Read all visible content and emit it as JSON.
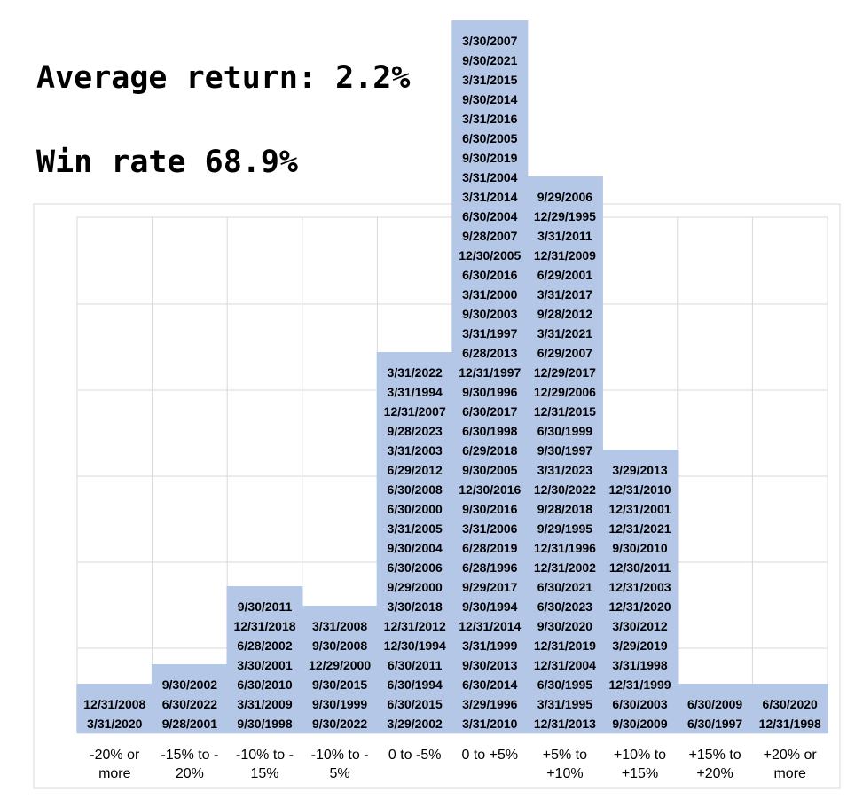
{
  "stats": {
    "average_return": "Average return: 2.2%",
    "win_rate": "Win rate 68.9%"
  },
  "colors": {
    "box_fill": "#b4c7e7",
    "grid": "#d9d9d9",
    "frame": "#d9d9d9",
    "text": "#000000"
  },
  "chart_data": {
    "type": "bar",
    "title": "",
    "xlabel": "",
    "ylabel": "",
    "categories": [
      [
        "-20% or",
        "more"
      ],
      [
        "-15% to -",
        "20%"
      ],
      [
        "-10% to -",
        "15%"
      ],
      [
        "-10% to -",
        "5%"
      ],
      [
        "0 to -5%"
      ],
      [
        "0 to +5%"
      ],
      [
        "+5% to",
        "+10%"
      ],
      [
        "+10% to",
        "+15%"
      ],
      [
        "+15% to",
        "+20%"
      ],
      [
        "+20% or",
        "more"
      ]
    ],
    "values": [
      2,
      3,
      7,
      6,
      19,
      36,
      28,
      14,
      2,
      2
    ],
    "grid": true,
    "legend": "none",
    "bins": [
      [
        "3/31/2020",
        "12/31/2008"
      ],
      [
        "9/28/2001",
        "6/30/2022",
        "9/30/2002"
      ],
      [
        "9/30/1998",
        "3/31/2009",
        "6/30/2010",
        "3/30/2001",
        "6/28/2002",
        "12/31/2018",
        "9/30/2011"
      ],
      [
        "9/30/2022",
        "9/30/1999",
        "9/30/2015",
        "12/29/2000",
        "9/30/2008",
        "3/31/2008"
      ],
      [
        "3/29/2002",
        "6/30/2015",
        "6/30/1994",
        "6/30/2011",
        "12/30/1994",
        "12/31/2012",
        "3/30/2018",
        "9/29/2000",
        "6/30/2006",
        "9/30/2004",
        "3/31/2005",
        "6/30/2000",
        "6/30/2008",
        "6/29/2012",
        "3/31/2003",
        "9/28/2023",
        "12/31/2007",
        "3/31/1994",
        "3/31/2022"
      ],
      [
        "3/31/2010",
        "3/29/1996",
        "6/30/2014",
        "9/30/2013",
        "3/31/1999",
        "12/31/2014",
        "9/30/1994",
        "9/29/2017",
        "6/28/1996",
        "6/28/2019",
        "3/31/2006",
        "9/30/2016",
        "12/30/2016",
        "9/30/2005",
        "6/29/2018",
        "6/30/1998",
        "6/30/2017",
        "9/30/1996",
        "12/31/1997",
        "6/28/2013",
        "3/31/1997",
        "9/30/2003",
        "3/31/2000",
        "6/30/2016",
        "12/30/2005",
        "9/28/2007",
        "6/30/2004",
        "3/31/2014",
        "3/31/2004",
        "9/30/2019",
        "6/30/2005",
        "3/31/2016",
        "9/30/2014",
        "3/31/2015",
        "9/30/2021",
        "3/30/2007"
      ],
      [
        "12/31/2013",
        "3/31/1995",
        "6/30/1995",
        "12/31/2004",
        "12/31/2019",
        "9/30/2020",
        "6/30/2023",
        "6/30/2021",
        "12/31/2002",
        "12/31/1996",
        "9/29/1995",
        "9/28/2018",
        "12/30/2022",
        "3/31/2023",
        "9/30/1997",
        "6/30/1999",
        "12/31/2015",
        "12/29/2006",
        "12/29/2017",
        "6/29/2007",
        "3/31/2021",
        "9/28/2012",
        "3/31/2017",
        "6/29/2001",
        "12/31/2009",
        "3/31/2011",
        "12/29/1995",
        "9/29/2006"
      ],
      [
        "9/30/2009",
        "6/30/2003",
        "12/31/1999",
        "3/31/1998",
        "3/29/2019",
        "3/30/2012",
        "12/31/2020",
        "12/31/2003",
        "12/30/2011",
        "9/30/2010",
        "12/31/2021",
        "12/31/2001",
        "12/31/2010",
        "3/29/2013"
      ],
      [
        "6/30/1997",
        "6/30/2009"
      ],
      [
        "12/31/1998",
        "6/30/2020"
      ]
    ]
  }
}
